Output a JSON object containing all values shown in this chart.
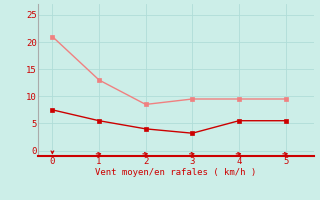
{
  "x": [
    0,
    1,
    2,
    3,
    4,
    5
  ],
  "y_rafales": [
    21,
    13,
    8.5,
    9.5,
    9.5,
    9.5
  ],
  "y_moyen": [
    7.5,
    5.5,
    4.0,
    3.2,
    5.5,
    5.5
  ],
  "line_color_rafales": "#f08080",
  "line_color_moyen": "#cc0000",
  "marker_color_rafales": "#f08080",
  "marker_color_moyen": "#cc0000",
  "bg_color": "#cceee8",
  "grid_color": "#b0ddd8",
  "xlabel": "Vent moyen/en rafales ( km/h )",
  "xlabel_color": "#cc0000",
  "tick_color": "#cc0000",
  "spine_left_color": "#aaaaaa",
  "spine_bottom_color": "#cc0000",
  "ylim": [
    -1,
    27
  ],
  "xlim": [
    -0.3,
    5.6
  ],
  "yticks": [
    0,
    5,
    10,
    15,
    20,
    25
  ],
  "xticks": [
    0,
    1,
    2,
    3,
    4,
    5
  ],
  "figsize": [
    3.2,
    2.0
  ],
  "dpi": 100
}
